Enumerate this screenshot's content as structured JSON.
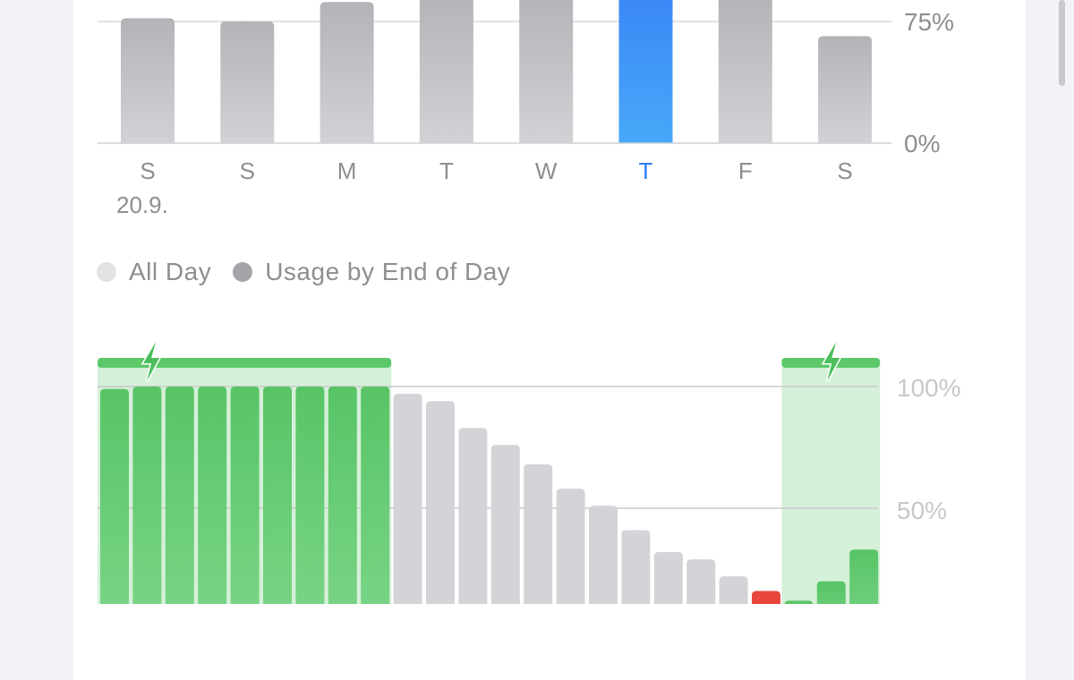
{
  "chart_data": [
    {
      "type": "bar",
      "categories": [
        "S",
        "S",
        "M",
        "T",
        "W",
        "T",
        "F",
        "S"
      ],
      "first_date_label": "20.9.",
      "values": [
        77,
        75,
        87,
        92,
        92,
        95,
        91,
        66
      ],
      "selected_index": 5,
      "y_ticks": [
        "0%",
        "75%"
      ],
      "ylim": [
        0,
        100
      ],
      "grid": true,
      "colors": {
        "bar": "#bcbcc0",
        "selected": "#3d8ef7",
        "selected_label": "#2f7cf6",
        "label": "#8e8e93"
      }
    },
    {
      "type": "bar",
      "legend": [
        {
          "label": "All Day",
          "color": "#e2e2e5"
        },
        {
          "label": "Usage by End of Day",
          "color": "#a4a4a8"
        }
      ],
      "values": [
        99,
        100,
        100,
        100,
        100,
        100,
        100,
        100,
        100,
        97,
        94,
        83,
        76,
        68,
        58,
        51,
        41,
        32,
        29,
        22,
        16,
        12,
        20,
        33
      ],
      "bar_states": [
        "charging",
        "charging",
        "charging",
        "charging",
        "charging",
        "charging",
        "charging",
        "charging",
        "charging",
        "normal",
        "normal",
        "normal",
        "normal",
        "normal",
        "normal",
        "normal",
        "normal",
        "normal",
        "normal",
        "normal",
        "low",
        "charging",
        "charging",
        "charging"
      ],
      "charging_periods": [
        [
          0,
          8
        ],
        [
          21,
          23
        ]
      ],
      "y_ticks": [
        "50%",
        "100%"
      ],
      "ylim": [
        0,
        100
      ],
      "grid": true,
      "colors": {
        "charging": "#5cc86a",
        "normal": "#d4d4d8",
        "low": "#e8453c",
        "charging_band": "#d5f0d9"
      }
    }
  ]
}
